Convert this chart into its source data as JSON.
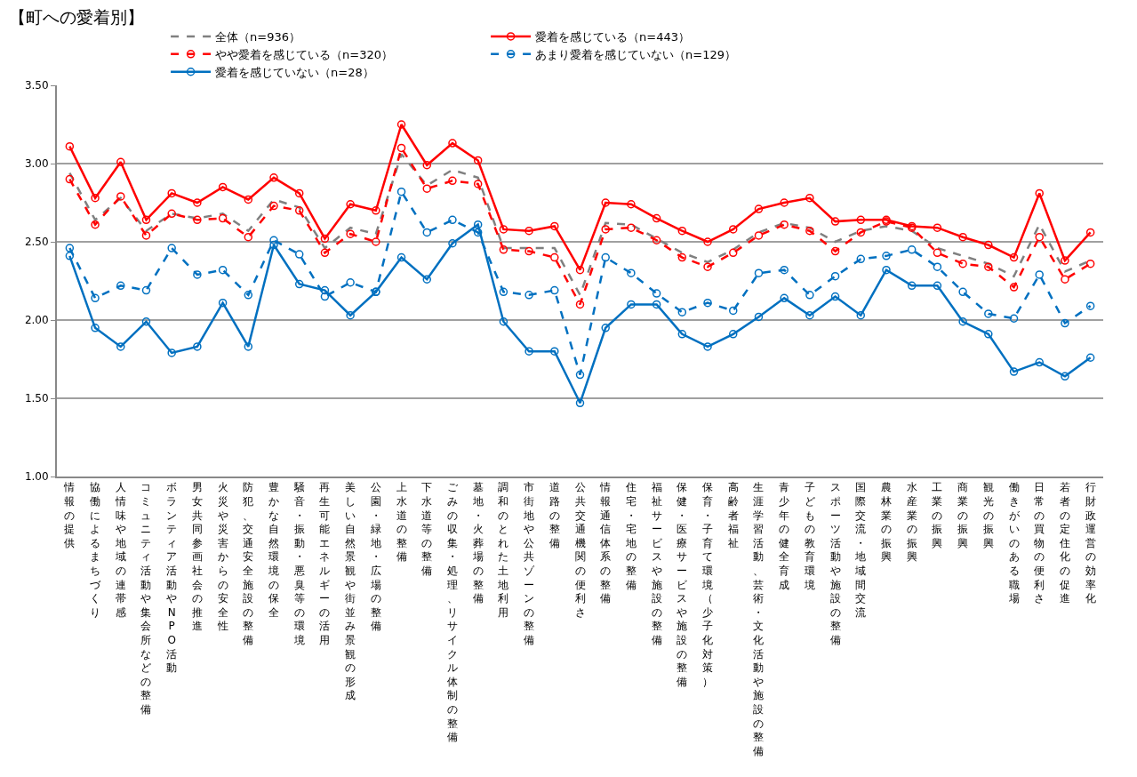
{
  "chart_data": {
    "type": "line",
    "title": "【町への愛着別】",
    "categories": [
      "情報の提供",
      "協働によるまちづくり",
      "人情味や地域の連帯感",
      "コミュニティ活動や集会所などの整備",
      "ボランティア活動やNPO活動",
      "男女共同参画社会の推進",
      "火災や災害からの安全性",
      "防犯、交通安全施設の整備",
      "豊かな自然環境の保全",
      "騒音・振動・悪臭等の環境",
      "再生可能エネルギーの活用",
      "美しい自然景観や街並み景観の形成",
      "公園・緑地・広場の整備",
      "上水道の整備",
      "下水道等の整備",
      "ごみの収集・処理、リサイクル体制の整備",
      "墓地・火葬場の整備",
      "調和のとれた土地利用",
      "市街地や公共ゾーンの整備",
      "道路の整備",
      "公共交通機関の便利さ",
      "情報通信体系の整備",
      "住宅・宅地の整備",
      "福祉サービスや施設の整備",
      "保健・医療サービスや施設の整備",
      "保育・子育て環境（少子化対策）",
      "高齢者福祉",
      "生涯学習活動、芸術・文化活動や施設の整備",
      "青少年の健全育成",
      "子どもの教育環境",
      "スポーツ活動や施設の整備",
      "国際交流・地域間交流",
      "農林業の振興",
      "水産業の振興",
      "工業の振興",
      "商業の振興",
      "観光の振興",
      "働きがいのある職場",
      "日常の買物の便利さ",
      "若者の定住化の促進",
      "行財政運営の効率化"
    ],
    "series": [
      {
        "name": "全体（n=936）",
        "color": "#808080",
        "line_style": "dashed",
        "marker": "none",
        "values": [
          2.94,
          2.64,
          2.78,
          2.57,
          2.68,
          2.65,
          2.68,
          2.57,
          2.77,
          2.72,
          2.46,
          2.59,
          2.55,
          3.06,
          2.86,
          2.96,
          2.91,
          2.46,
          2.46,
          2.46,
          2.16,
          2.62,
          2.61,
          2.52,
          2.43,
          2.37,
          2.45,
          2.56,
          2.62,
          2.59,
          2.5,
          2.57,
          2.6,
          2.57,
          2.46,
          2.41,
          2.36,
          2.28,
          2.61,
          2.31,
          2.38
        ]
      },
      {
        "name": "愛着を感じている（n=443）",
        "color": "#ff0000",
        "line_style": "solid",
        "values": [
          3.11,
          2.78,
          3.01,
          2.64,
          2.81,
          2.75,
          2.85,
          2.77,
          2.91,
          2.81,
          2.52,
          2.74,
          2.7,
          3.25,
          2.99,
          3.13,
          3.02,
          2.58,
          2.57,
          2.6,
          2.32,
          2.75,
          2.74,
          2.65,
          2.57,
          2.5,
          2.58,
          2.71,
          2.75,
          2.78,
          2.63,
          2.64,
          2.64,
          2.6,
          2.59,
          2.53,
          2.48,
          2.4,
          2.81,
          2.38,
          2.56
        ]
      },
      {
        "name": "やや愛着を感じている（n=320）",
        "color": "#ff0000",
        "line_style": "dashed",
        "values": [
          2.9,
          2.61,
          2.79,
          2.54,
          2.68,
          2.64,
          2.65,
          2.53,
          2.73,
          2.7,
          2.43,
          2.55,
          2.5,
          3.1,
          2.84,
          2.89,
          2.87,
          2.45,
          2.44,
          2.4,
          2.1,
          2.58,
          2.59,
          2.51,
          2.4,
          2.34,
          2.43,
          2.54,
          2.61,
          2.57,
          2.44,
          2.56,
          2.63,
          2.59,
          2.43,
          2.36,
          2.34,
          2.21,
          2.53,
          2.26,
          2.36
        ]
      },
      {
        "name": "あまり愛着を感じていない（n=129）",
        "color": "#0070c0",
        "line_style": "dashed",
        "values": [
          2.46,
          2.14,
          2.22,
          2.19,
          2.46,
          2.29,
          2.32,
          2.16,
          2.51,
          2.42,
          2.15,
          2.24,
          2.18,
          2.82,
          2.56,
          2.64,
          2.56,
          2.18,
          2.16,
          2.19,
          1.65,
          2.4,
          2.3,
          2.17,
          2.05,
          2.11,
          2.06,
          2.3,
          2.32,
          2.16,
          2.28,
          2.39,
          2.41,
          2.45,
          2.34,
          2.18,
          2.04,
          2.01,
          2.29,
          1.98,
          2.09
        ]
      },
      {
        "name": "愛着を感じていない（n=28）",
        "color": "#0070c0",
        "line_style": "solid",
        "values": [
          2.41,
          1.95,
          1.83,
          1.99,
          1.79,
          1.83,
          2.11,
          1.83,
          2.48,
          2.23,
          2.19,
          2.03,
          2.18,
          2.4,
          2.26,
          2.49,
          2.61,
          1.99,
          1.8,
          1.8,
          1.47,
          1.95,
          2.1,
          2.1,
          1.91,
          1.83,
          1.91,
          2.02,
          2.14,
          2.03,
          2.15,
          2.03,
          2.32,
          2.22,
          2.22,
          1.99,
          1.91,
          1.67,
          1.73,
          1.64,
          1.76
        ]
      }
    ],
    "ylim": [
      1,
      3.5
    ],
    "yticks": [
      {
        "value": 1,
        "label": "1.00"
      },
      {
        "value": 1.5,
        "label": "1.50"
      },
      {
        "value": 2,
        "label": "2.00"
      },
      {
        "value": 2.5,
        "label": "2.50"
      },
      {
        "value": 3,
        "label": "3.00"
      },
      {
        "value": 3.5,
        "label": "3.50"
      }
    ],
    "grid": "y",
    "legend": "top",
    "marker": "circle"
  }
}
